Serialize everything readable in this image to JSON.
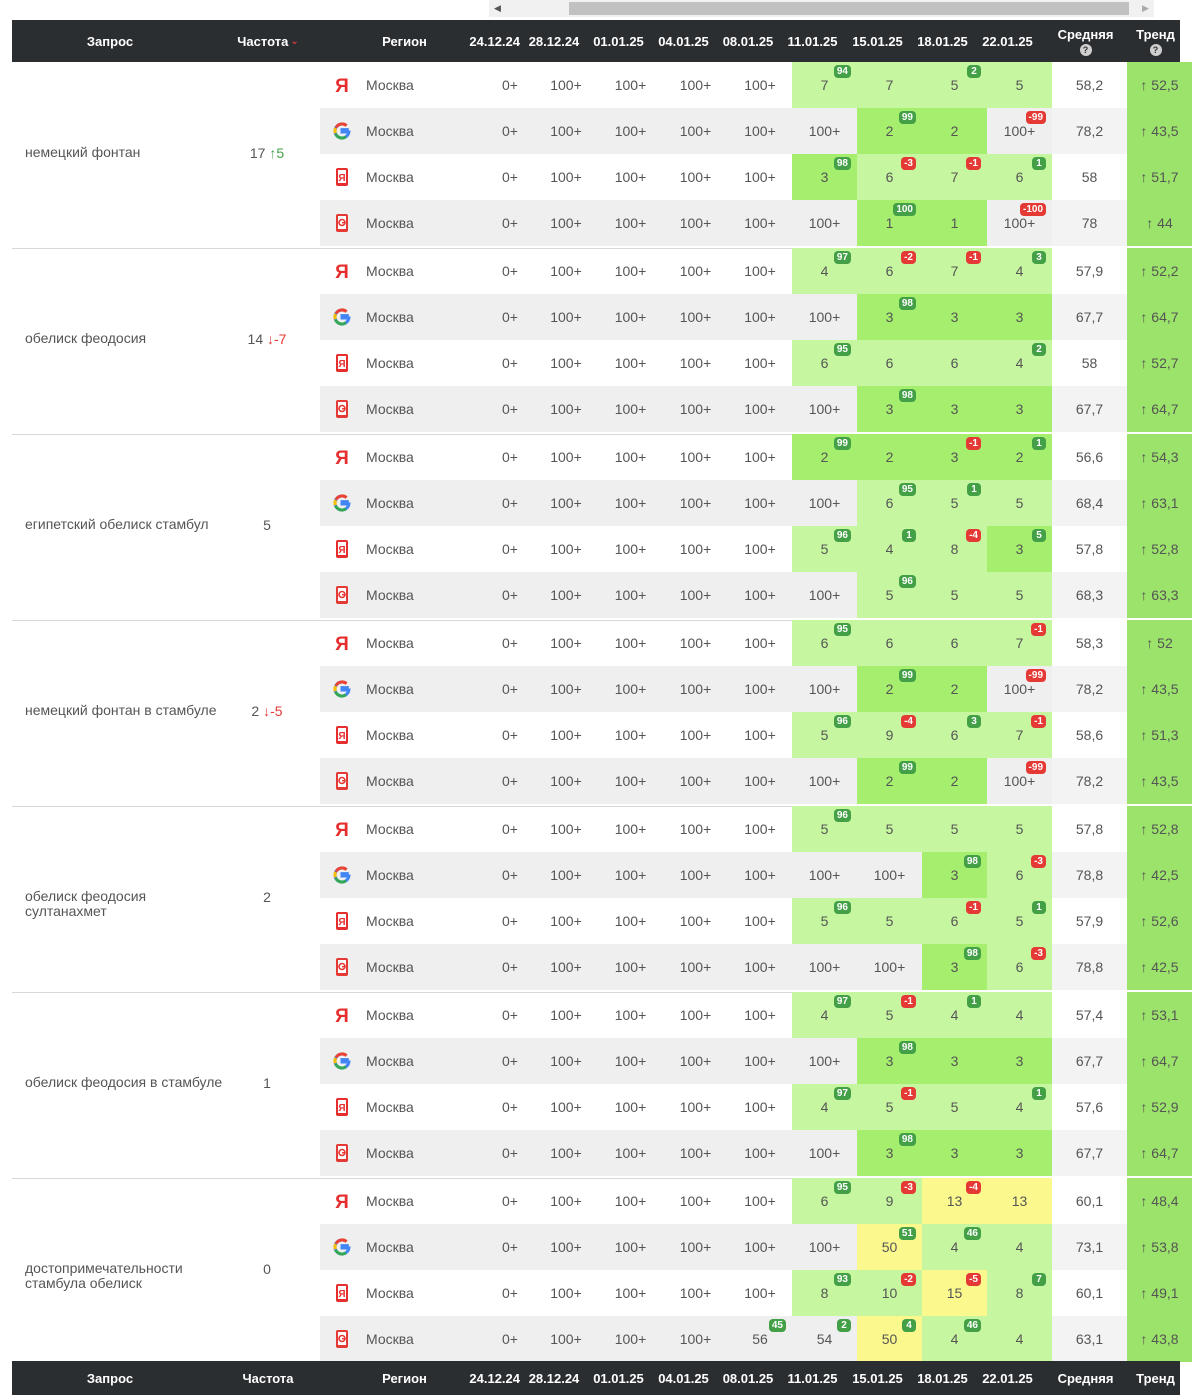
{
  "columns": {
    "query": "Запрос",
    "freq": "Частота",
    "region": "Регион",
    "dates": [
      "24.12.24",
      "28.12.24",
      "01.01.25",
      "04.01.25",
      "08.01.25",
      "11.01.25",
      "15.01.25",
      "18.01.25",
      "22.01.25"
    ],
    "avg": "Средняя",
    "trend": "Тренд",
    "help": "?",
    "sort_icon": "chevron-down-icon"
  },
  "groups": [
    {
      "query": "немецкий фонтан",
      "freq": "17",
      "freq_delta": "↑5",
      "freq_dir": "up",
      "rows": [
        {
          "engine": "yandex",
          "region": "Москва",
          "vals": [
            "0+",
            "100+",
            "100+",
            "100+",
            "100+",
            "7",
            "7",
            "5",
            "5"
          ],
          "badges": [
            null,
            null,
            null,
            null,
            null,
            "94",
            null,
            "2",
            null
          ],
          "avg": "58,2",
          "trend": "↑ 52,5"
        },
        {
          "engine": "google",
          "region": "Москва",
          "vals": [
            "0+",
            "100+",
            "100+",
            "100+",
            "100+",
            "100+",
            "2",
            "2",
            "100+"
          ],
          "badges": [
            null,
            null,
            null,
            null,
            null,
            null,
            "99",
            null,
            "-99"
          ],
          "avg": "78,2",
          "trend": "↑ 43,5"
        },
        {
          "engine": "yandex-mobile",
          "region": "Москва",
          "vals": [
            "0+",
            "100+",
            "100+",
            "100+",
            "100+",
            "3",
            "6",
            "7",
            "6"
          ],
          "badges": [
            null,
            null,
            null,
            null,
            null,
            "98",
            "-3",
            "-1",
            "1"
          ],
          "avg": "58",
          "trend": "↑ 51,7"
        },
        {
          "engine": "google-mobile",
          "region": "Москва",
          "vals": [
            "0+",
            "100+",
            "100+",
            "100+",
            "100+",
            "100+",
            "1",
            "1",
            "100+"
          ],
          "badges": [
            null,
            null,
            null,
            null,
            null,
            null,
            "100",
            null,
            "-100"
          ],
          "avg": "78",
          "trend": "↑ 44"
        }
      ]
    },
    {
      "query": "обелиск феодосия",
      "freq": "14",
      "freq_delta": "↓-7",
      "freq_dir": "down",
      "rows": [
        {
          "engine": "yandex",
          "region": "Москва",
          "vals": [
            "0+",
            "100+",
            "100+",
            "100+",
            "100+",
            "4",
            "6",
            "7",
            "4"
          ],
          "badges": [
            null,
            null,
            null,
            null,
            null,
            "97",
            "-2",
            "-1",
            "3"
          ],
          "avg": "57,9",
          "trend": "↑ 52,2"
        },
        {
          "engine": "google",
          "region": "Москва",
          "vals": [
            "0+",
            "100+",
            "100+",
            "100+",
            "100+",
            "100+",
            "3",
            "3",
            "3"
          ],
          "badges": [
            null,
            null,
            null,
            null,
            null,
            null,
            "98",
            null,
            null
          ],
          "avg": "67,7",
          "trend": "↑ 64,7"
        },
        {
          "engine": "yandex-mobile",
          "region": "Москва",
          "vals": [
            "0+",
            "100+",
            "100+",
            "100+",
            "100+",
            "6",
            "6",
            "6",
            "4"
          ],
          "badges": [
            null,
            null,
            null,
            null,
            null,
            "95",
            null,
            null,
            "2"
          ],
          "avg": "58",
          "trend": "↑ 52,7"
        },
        {
          "engine": "google-mobile",
          "region": "Москва",
          "vals": [
            "0+",
            "100+",
            "100+",
            "100+",
            "100+",
            "100+",
            "3",
            "3",
            "3"
          ],
          "badges": [
            null,
            null,
            null,
            null,
            null,
            null,
            "98",
            null,
            null
          ],
          "avg": "67,7",
          "trend": "↑ 64,7"
        }
      ]
    },
    {
      "query": "египетский обелиск стамбул",
      "freq": "5",
      "freq_delta": "",
      "freq_dir": "",
      "rows": [
        {
          "engine": "yandex",
          "region": "Москва",
          "vals": [
            "0+",
            "100+",
            "100+",
            "100+",
            "100+",
            "2",
            "2",
            "3",
            "2"
          ],
          "badges": [
            null,
            null,
            null,
            null,
            null,
            "99",
            null,
            "-1",
            "1"
          ],
          "avg": "56,6",
          "trend": "↑ 54,3"
        },
        {
          "engine": "google",
          "region": "Москва",
          "vals": [
            "0+",
            "100+",
            "100+",
            "100+",
            "100+",
            "100+",
            "6",
            "5",
            "5"
          ],
          "badges": [
            null,
            null,
            null,
            null,
            null,
            null,
            "95",
            "1",
            null
          ],
          "avg": "68,4",
          "trend": "↑ 63,1"
        },
        {
          "engine": "yandex-mobile",
          "region": "Москва",
          "vals": [
            "0+",
            "100+",
            "100+",
            "100+",
            "100+",
            "5",
            "4",
            "8",
            "3"
          ],
          "badges": [
            null,
            null,
            null,
            null,
            null,
            "96",
            "1",
            "-4",
            "5"
          ],
          "avg": "57,8",
          "trend": "↑ 52,8"
        },
        {
          "engine": "google-mobile",
          "region": "Москва",
          "vals": [
            "0+",
            "100+",
            "100+",
            "100+",
            "100+",
            "100+",
            "5",
            "5",
            "5"
          ],
          "badges": [
            null,
            null,
            null,
            null,
            null,
            null,
            "96",
            null,
            null
          ],
          "avg": "68,3",
          "trend": "↑ 63,3"
        }
      ]
    },
    {
      "query": "немецкий фонтан в стамбуле",
      "freq": "2",
      "freq_delta": "↓-5",
      "freq_dir": "down",
      "rows": [
        {
          "engine": "yandex",
          "region": "Москва",
          "vals": [
            "0+",
            "100+",
            "100+",
            "100+",
            "100+",
            "6",
            "6",
            "6",
            "7"
          ],
          "badges": [
            null,
            null,
            null,
            null,
            null,
            "95",
            null,
            null,
            "-1"
          ],
          "avg": "58,3",
          "trend": "↑ 52"
        },
        {
          "engine": "google",
          "region": "Москва",
          "vals": [
            "0+",
            "100+",
            "100+",
            "100+",
            "100+",
            "100+",
            "2",
            "2",
            "100+"
          ],
          "badges": [
            null,
            null,
            null,
            null,
            null,
            null,
            "99",
            null,
            "-99"
          ],
          "avg": "78,2",
          "trend": "↑ 43,5"
        },
        {
          "engine": "yandex-mobile",
          "region": "Москва",
          "vals": [
            "0+",
            "100+",
            "100+",
            "100+",
            "100+",
            "5",
            "9",
            "6",
            "7"
          ],
          "badges": [
            null,
            null,
            null,
            null,
            null,
            "96",
            "-4",
            "3",
            "-1"
          ],
          "avg": "58,6",
          "trend": "↑ 51,3"
        },
        {
          "engine": "google-mobile",
          "region": "Москва",
          "vals": [
            "0+",
            "100+",
            "100+",
            "100+",
            "100+",
            "100+",
            "2",
            "2",
            "100+"
          ],
          "badges": [
            null,
            null,
            null,
            null,
            null,
            null,
            "99",
            null,
            "-99"
          ],
          "avg": "78,2",
          "trend": "↑ 43,5"
        }
      ]
    },
    {
      "query": "обелиск феодосия султанахмет",
      "freq": "2",
      "freq_delta": "",
      "freq_dir": "",
      "rows": [
        {
          "engine": "yandex",
          "region": "Москва",
          "vals": [
            "0+",
            "100+",
            "100+",
            "100+",
            "100+",
            "5",
            "5",
            "5",
            "5"
          ],
          "badges": [
            null,
            null,
            null,
            null,
            null,
            "96",
            null,
            null,
            null
          ],
          "avg": "57,8",
          "trend": "↑ 52,8"
        },
        {
          "engine": "google",
          "region": "Москва",
          "vals": [
            "0+",
            "100+",
            "100+",
            "100+",
            "100+",
            "100+",
            "100+",
            "3",
            "6"
          ],
          "badges": [
            null,
            null,
            null,
            null,
            null,
            null,
            null,
            "98",
            "-3"
          ],
          "avg": "78,8",
          "trend": "↑ 42,5"
        },
        {
          "engine": "yandex-mobile",
          "region": "Москва",
          "vals": [
            "0+",
            "100+",
            "100+",
            "100+",
            "100+",
            "5",
            "5",
            "6",
            "5"
          ],
          "badges": [
            null,
            null,
            null,
            null,
            null,
            "96",
            null,
            "-1",
            "1"
          ],
          "avg": "57,9",
          "trend": "↑ 52,6"
        },
        {
          "engine": "google-mobile",
          "region": "Москва",
          "vals": [
            "0+",
            "100+",
            "100+",
            "100+",
            "100+",
            "100+",
            "100+",
            "3",
            "6"
          ],
          "badges": [
            null,
            null,
            null,
            null,
            null,
            null,
            null,
            "98",
            "-3"
          ],
          "avg": "78,8",
          "trend": "↑ 42,5"
        }
      ]
    },
    {
      "query": "обелиск феодосия в стамбуле",
      "freq": "1",
      "freq_delta": "",
      "freq_dir": "",
      "rows": [
        {
          "engine": "yandex",
          "region": "Москва",
          "vals": [
            "0+",
            "100+",
            "100+",
            "100+",
            "100+",
            "4",
            "5",
            "4",
            "4"
          ],
          "badges": [
            null,
            null,
            null,
            null,
            null,
            "97",
            "-1",
            "1",
            null
          ],
          "avg": "57,4",
          "trend": "↑ 53,1"
        },
        {
          "engine": "google",
          "region": "Москва",
          "vals": [
            "0+",
            "100+",
            "100+",
            "100+",
            "100+",
            "100+",
            "3",
            "3",
            "3"
          ],
          "badges": [
            null,
            null,
            null,
            null,
            null,
            null,
            "98",
            null,
            null
          ],
          "avg": "67,7",
          "trend": "↑ 64,7"
        },
        {
          "engine": "yandex-mobile",
          "region": "Москва",
          "vals": [
            "0+",
            "100+",
            "100+",
            "100+",
            "100+",
            "4",
            "5",
            "5",
            "4"
          ],
          "badges": [
            null,
            null,
            null,
            null,
            null,
            "97",
            "-1",
            null,
            "1"
          ],
          "avg": "57,6",
          "trend": "↑ 52,9"
        },
        {
          "engine": "google-mobile",
          "region": "Москва",
          "vals": [
            "0+",
            "100+",
            "100+",
            "100+",
            "100+",
            "100+",
            "3",
            "3",
            "3"
          ],
          "badges": [
            null,
            null,
            null,
            null,
            null,
            null,
            "98",
            null,
            null
          ],
          "avg": "67,7",
          "trend": "↑ 64,7"
        }
      ]
    },
    {
      "query": "достопримечательности стамбула обелиск",
      "freq": "0",
      "freq_delta": "",
      "freq_dir": "",
      "rows": [
        {
          "engine": "yandex",
          "region": "Москва",
          "vals": [
            "0+",
            "100+",
            "100+",
            "100+",
            "100+",
            "6",
            "9",
            "13",
            "13"
          ],
          "badges": [
            null,
            null,
            null,
            null,
            null,
            "95",
            "-3",
            "-4",
            null
          ],
          "avg": "60,1",
          "trend": "↑ 48,4"
        },
        {
          "engine": "google",
          "region": "Москва",
          "vals": [
            "0+",
            "100+",
            "100+",
            "100+",
            "100+",
            "100+",
            "50",
            "4",
            "4"
          ],
          "badges": [
            null,
            null,
            null,
            null,
            null,
            null,
            "51",
            "46",
            null
          ],
          "avg": "73,1",
          "trend": "↑ 53,8"
        },
        {
          "engine": "yandex-mobile",
          "region": "Москва",
          "vals": [
            "0+",
            "100+",
            "100+",
            "100+",
            "100+",
            "8",
            "10",
            "15",
            "8"
          ],
          "badges": [
            null,
            null,
            null,
            null,
            null,
            "93",
            "-2",
            "-5",
            "7"
          ],
          "avg": "60,1",
          "trend": "↑ 49,1"
        },
        {
          "engine": "google-mobile",
          "region": "Москва",
          "vals": [
            "0+",
            "100+",
            "100+",
            "100+",
            "56",
            "54",
            "50",
            "4",
            "4"
          ],
          "badges": [
            null,
            null,
            null,
            null,
            "45",
            "2",
            "4",
            "46",
            null
          ],
          "avg": "63,1",
          "trend": "↑ 43,8"
        }
      ]
    }
  ],
  "colors": {
    "header_bg": "#2b2e31",
    "pos_badge": "#43a047",
    "neg_badge": "#e53935",
    "top_green": "#a6ee6e",
    "mid_green": "#c6f7a0",
    "light_green": "#dcf9c4",
    "yellow": "#fbf98e",
    "trend_green": "#9be36a"
  }
}
